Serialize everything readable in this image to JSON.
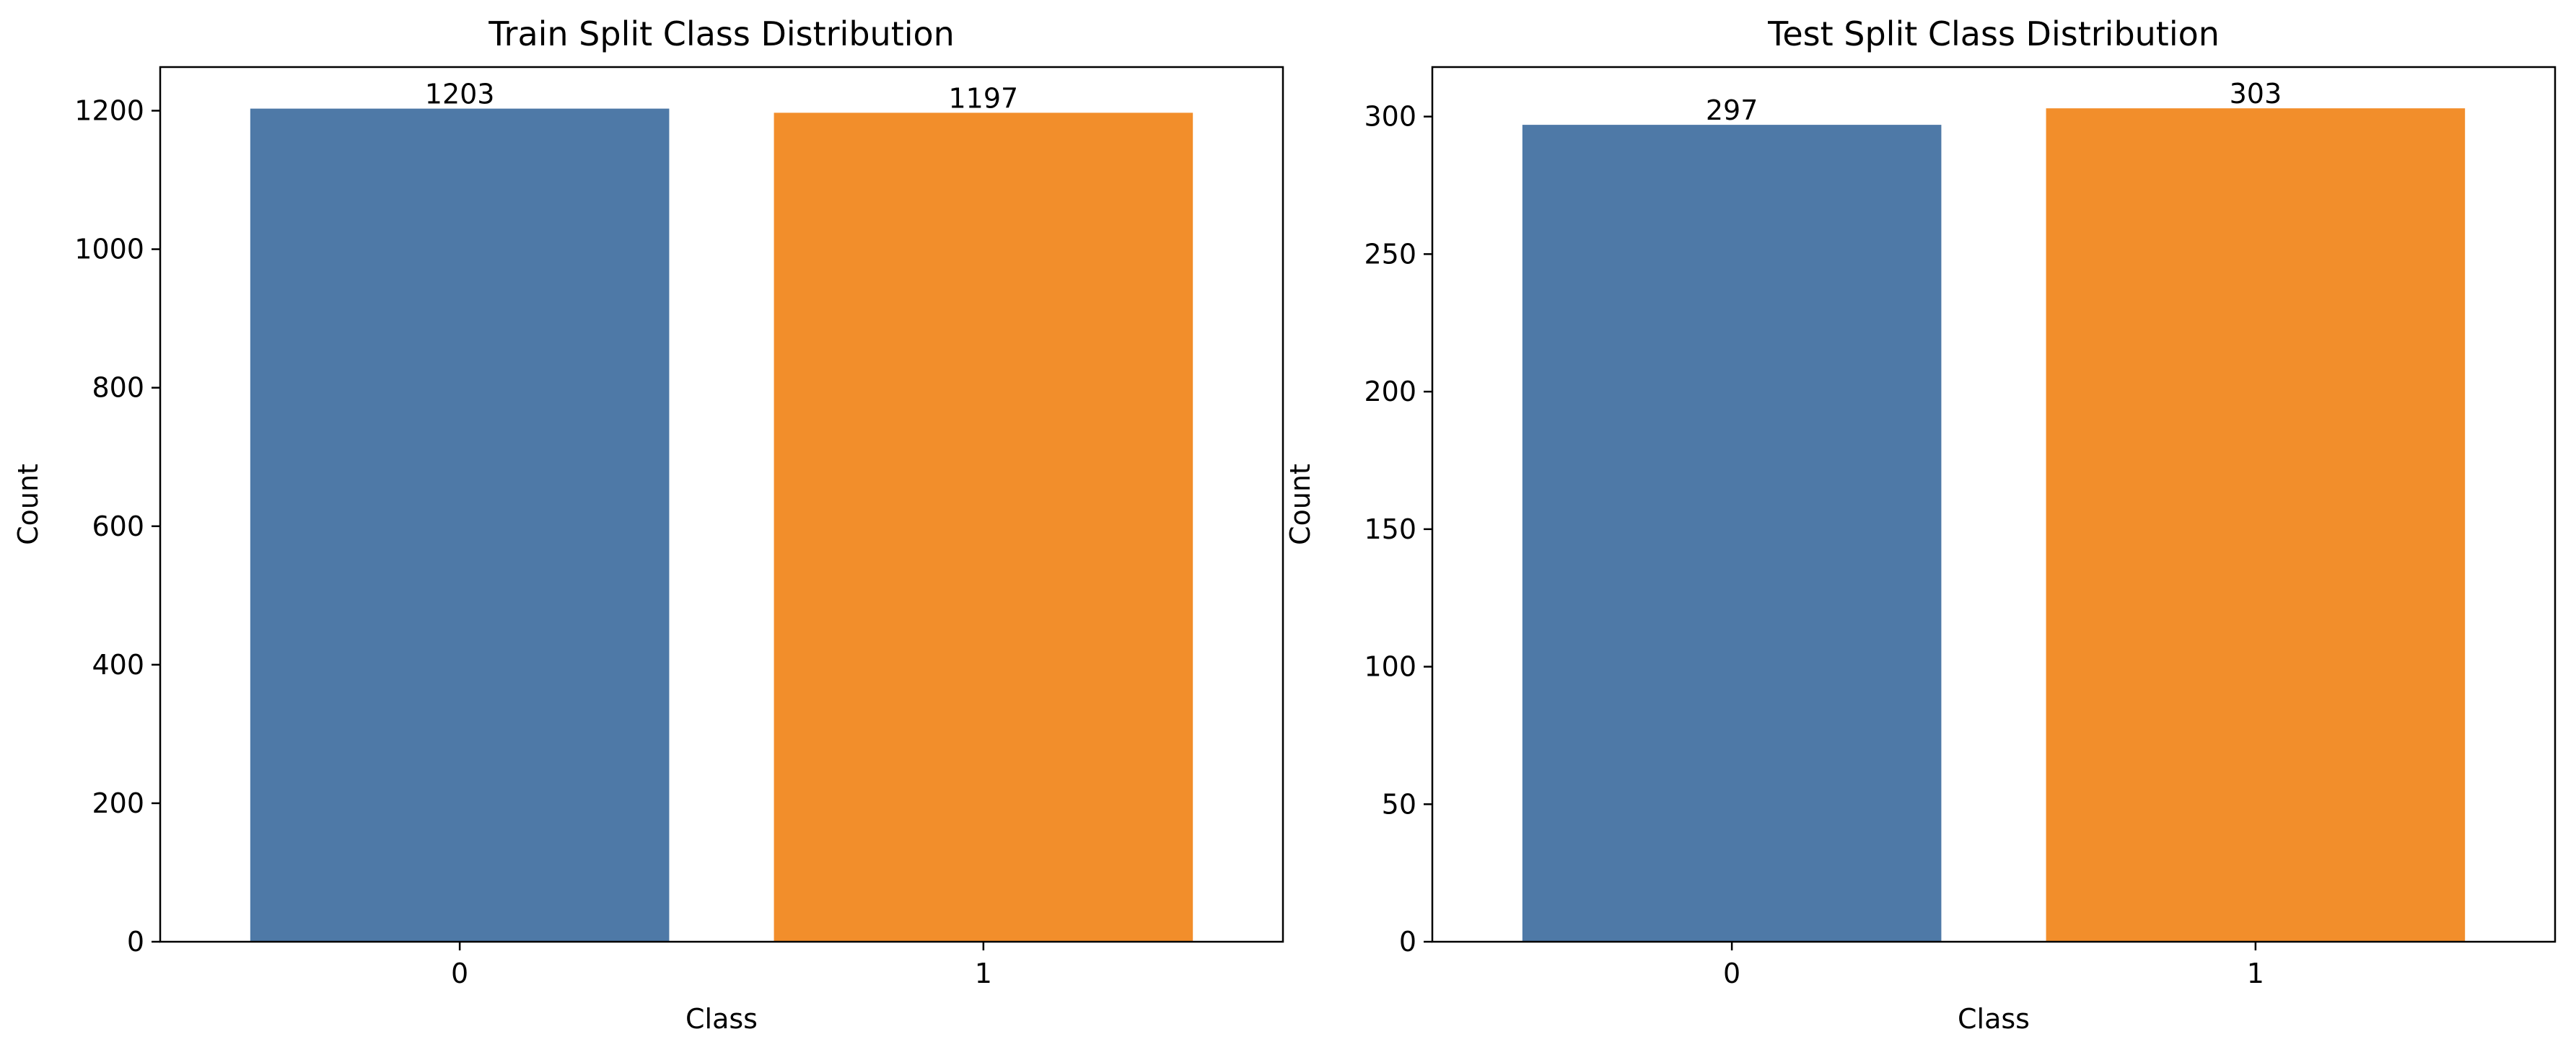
{
  "chart_data": [
    {
      "type": "bar",
      "title": "Train Split Class Distribution",
      "xlabel": "Class",
      "ylabel": "Count",
      "categories": [
        "0",
        "1"
      ],
      "values": [
        1203,
        1197
      ],
      "data_labels": [
        "1203",
        "1197"
      ],
      "bar_colors": [
        "#4e79a7",
        "#f28e2b"
      ],
      "ylim": [
        0,
        1263
      ],
      "yticks": [
        0,
        200,
        400,
        600,
        800,
        1000,
        1200
      ],
      "grid": false,
      "legend": "none"
    },
    {
      "type": "bar",
      "title": "Test Split Class Distribution",
      "xlabel": "Class",
      "ylabel": "Count",
      "categories": [
        "0",
        "1"
      ],
      "values": [
        297,
        303
      ],
      "data_labels": [
        "297",
        "303"
      ],
      "bar_colors": [
        "#4e79a7",
        "#f28e2b"
      ],
      "ylim": [
        0,
        318
      ],
      "yticks": [
        0,
        50,
        100,
        150,
        200,
        250,
        300
      ],
      "grid": false,
      "legend": "none"
    }
  ]
}
